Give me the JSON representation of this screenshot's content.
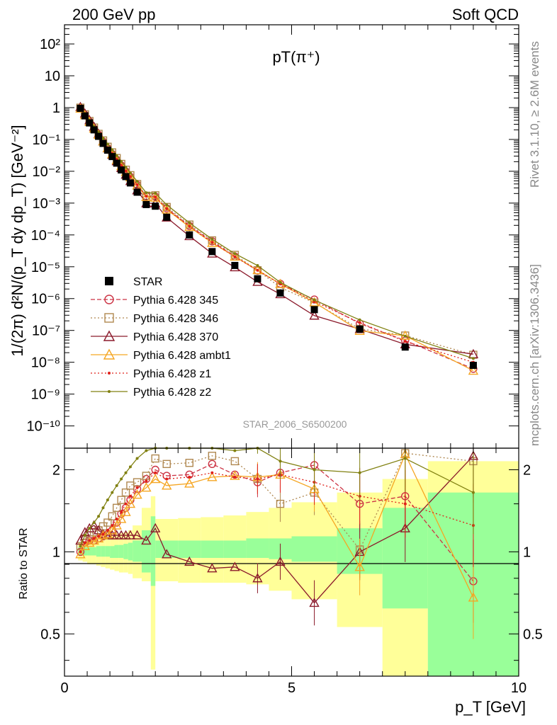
{
  "header": {
    "left": "200 GeV pp",
    "right": "Soft QCD",
    "side_top": "Rivet 3.1.10, ≥ 2.6M events",
    "side_bottom": "mcplots.cern.ch [arXiv:1306.3436]"
  },
  "chart_data": {
    "type": "scatter",
    "title": "pT(π⁺)",
    "watermark": "STAR_2006_S6500200",
    "xlabel": "p_T [GeV]",
    "ylabel": "1/(2π) d²N/(p_T dy dp_T) [GeV⁻²]",
    "ratio_ylabel": "Ratio to STAR",
    "xlim": [
      0,
      10
    ],
    "ylim": [
      2e-11,
      400
    ],
    "yscale": "log",
    "ratio_ylim": [
      0.35,
      2.4
    ],
    "ratio_yscale": "log",
    "x_ticks": [
      "0",
      "5",
      "10"
    ],
    "y_ticks": [
      "10⁻¹⁰",
      "10⁻⁹",
      "10⁻⁸",
      "10⁻⁷",
      "10⁻⁶",
      "10⁻⁵",
      "10⁻⁴",
      "10⁻³",
      "10⁻²",
      "10⁻¹",
      "1",
      "10",
      "10²"
    ],
    "ratio_ticks": [
      "0.5",
      "1",
      "2"
    ],
    "legend_position": "lower-left",
    "x": [
      0.35,
      0.45,
      0.55,
      0.65,
      0.75,
      0.85,
      0.95,
      1.05,
      1.15,
      1.25,
      1.35,
      1.45,
      1.6,
      1.8,
      2.0,
      2.25,
      2.75,
      3.25,
      3.75,
      4.25,
      4.75,
      5.5,
      6.5,
      7.5,
      9.0
    ],
    "reference": {
      "name": "STAR",
      "color": "#000000",
      "values": [
        0.95,
        0.55,
        0.33,
        0.2,
        0.125,
        0.075,
        0.046,
        0.029,
        0.018,
        0.011,
        0.0068,
        0.0043,
        0.0022,
        0.0009,
        0.0008,
        0.00036,
        0.0001,
        3e-05,
        1.1e-05,
        4.2e-06,
        1.5e-06,
        4.5e-07,
        1.1e-07,
        3e-08,
        8e-09
      ]
    },
    "uncertainty_bands": {
      "stat_color": "#99ff99",
      "total_color": "#ffff99",
      "x_edges": [
        0.3,
        0.4,
        0.5,
        0.6,
        0.7,
        0.8,
        0.9,
        1.0,
        1.1,
        1.2,
        1.3,
        1.4,
        1.5,
        1.7,
        1.9,
        2.0,
        2.5,
        3.0,
        3.5,
        4.0,
        4.5,
        5.0,
        6.0,
        7.0,
        8.0,
        10.0
      ],
      "stat_low": [
        0.97,
        0.97,
        0.97,
        0.97,
        0.96,
        0.96,
        0.96,
        0.95,
        0.95,
        0.95,
        0.94,
        0.93,
        0.92,
        0.84,
        0.75,
        0.95,
        0.95,
        0.95,
        0.95,
        0.95,
        0.94,
        0.92,
        0.83,
        0.62,
        0.35
      ],
      "stat_high": [
        1.04,
        1.04,
        1.04,
        1.04,
        1.05,
        1.05,
        1.05,
        1.05,
        1.06,
        1.06,
        1.07,
        1.08,
        1.1,
        1.2,
        1.35,
        1.1,
        1.1,
        1.1,
        1.1,
        1.12,
        1.12,
        1.14,
        1.22,
        1.45,
        1.65
      ],
      "tot_low": [
        0.93,
        0.92,
        0.9,
        0.9,
        0.89,
        0.88,
        0.87,
        0.86,
        0.85,
        0.84,
        0.84,
        0.83,
        0.8,
        0.78,
        0.37,
        0.78,
        0.77,
        0.77,
        0.77,
        0.76,
        0.72,
        0.67,
        0.53,
        0.35,
        0.35
      ],
      "tot_high": [
        1.08,
        1.08,
        1.1,
        1.1,
        1.11,
        1.12,
        1.13,
        1.15,
        1.16,
        1.17,
        1.18,
        1.2,
        1.25,
        1.45,
        1.6,
        1.32,
        1.33,
        1.34,
        1.36,
        1.4,
        1.45,
        1.52,
        1.65,
        1.85,
        2.15
      ]
    },
    "series": [
      {
        "name": "Pythia 6.428 345",
        "color": "#cc3344",
        "style": "dashed",
        "marker": "circle",
        "ratio": [
          1.0,
          1.08,
          1.1,
          1.1,
          1.12,
          1.14,
          1.16,
          1.2,
          1.28,
          1.38,
          1.45,
          1.55,
          1.7,
          1.85,
          2.0,
          1.9,
          1.92,
          2.1,
          1.92,
          1.8,
          1.95,
          2.08,
          1.5,
          1.6,
          0.78
        ]
      },
      {
        "name": "Pythia 6.428 346",
        "color": "#b08850",
        "style": "dotted",
        "marker": "square",
        "ratio": [
          1.05,
          1.12,
          1.15,
          1.18,
          1.2,
          1.24,
          1.28,
          1.35,
          1.45,
          1.55,
          1.65,
          1.75,
          1.8,
          1.9,
          2.2,
          2.1,
          2.12,
          2.25,
          2.15,
          1.85,
          1.5,
          1.65,
          1.02,
          2.3,
          2.15
        ]
      },
      {
        "name": "Pythia 6.428 370",
        "color": "#8b1a2b",
        "style": "solid",
        "marker": "triangle",
        "ratio": [
          1.1,
          1.18,
          1.22,
          1.25,
          1.2,
          1.16,
          1.15,
          1.15,
          1.15,
          1.15,
          1.15,
          1.15,
          1.15,
          1.1,
          1.22,
          0.98,
          0.92,
          0.87,
          0.88,
          0.8,
          0.92,
          0.65,
          1.0,
          1.22,
          2.25
        ]
      },
      {
        "name": "Pythia 6.428 ambt1",
        "color": "#f5a623",
        "style": "solid",
        "marker": "triangle",
        "ratio": [
          0.98,
          1.05,
          1.08,
          1.1,
          1.12,
          1.15,
          1.16,
          1.2,
          1.25,
          1.32,
          1.4,
          1.5,
          1.62,
          1.72,
          1.85,
          1.75,
          1.78,
          1.88,
          1.9,
          1.88,
          1.92,
          1.7,
          0.88,
          2.28,
          0.68
        ]
      },
      {
        "name": "Pythia 6.428 z1",
        "color": "#e0201a",
        "style": "dotted",
        "marker": "dot",
        "ratio": [
          1.0,
          1.08,
          1.1,
          1.12,
          1.14,
          1.16,
          1.2,
          1.25,
          1.32,
          1.4,
          1.5,
          1.6,
          1.72,
          1.82,
          1.95,
          1.85,
          1.88,
          1.95,
          1.88,
          1.85,
          1.92,
          1.8,
          1.6,
          1.5,
          1.25
        ]
      },
      {
        "name": "Pythia 6.428 z2",
        "color": "#808010",
        "style": "solid",
        "marker": "dot",
        "ratio": [
          1.05,
          1.15,
          1.22,
          1.28,
          1.35,
          1.45,
          1.55,
          1.65,
          1.75,
          1.85,
          1.95,
          2.05,
          2.2,
          2.35,
          2.55,
          2.45,
          2.4,
          2.45,
          2.35,
          2.6,
          2.15,
          2.0,
          1.95,
          2.2,
          1.65
        ]
      }
    ]
  }
}
